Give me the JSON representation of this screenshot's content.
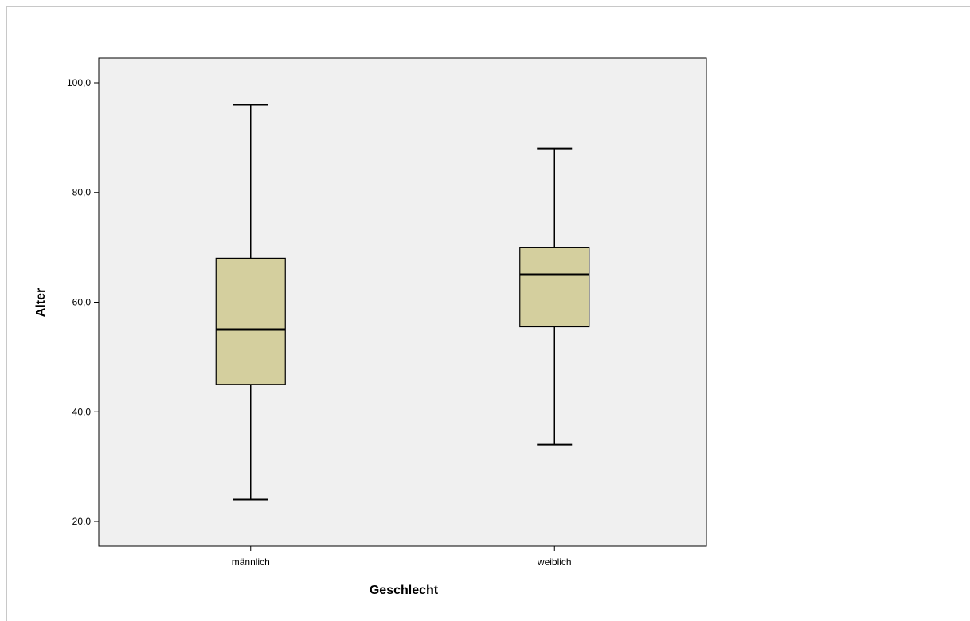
{
  "chart_data": {
    "type": "boxplot",
    "xlabel": "Geschlecht",
    "ylabel": "Alter",
    "ylim": [
      15.5,
      104.5
    ],
    "yticks": [
      20,
      40,
      60,
      80,
      100
    ],
    "ytick_labels": [
      "20,0",
      "40,0",
      "60,0",
      "80,0",
      "100,0"
    ],
    "categories": [
      "männlich",
      "weiblich"
    ],
    "boxes": [
      {
        "category": "männlich",
        "min": 24,
        "q1": 45,
        "median": 55,
        "q3": 68,
        "max": 96
      },
      {
        "category": "weiblich",
        "min": 34,
        "q1": 55.5,
        "median": 65,
        "q3": 70,
        "max": 88
      }
    ],
    "grid": false,
    "colors": {
      "box_fill": "#d4cf9e",
      "plot_background": "#f0f0f0",
      "line": "#000000"
    }
  }
}
